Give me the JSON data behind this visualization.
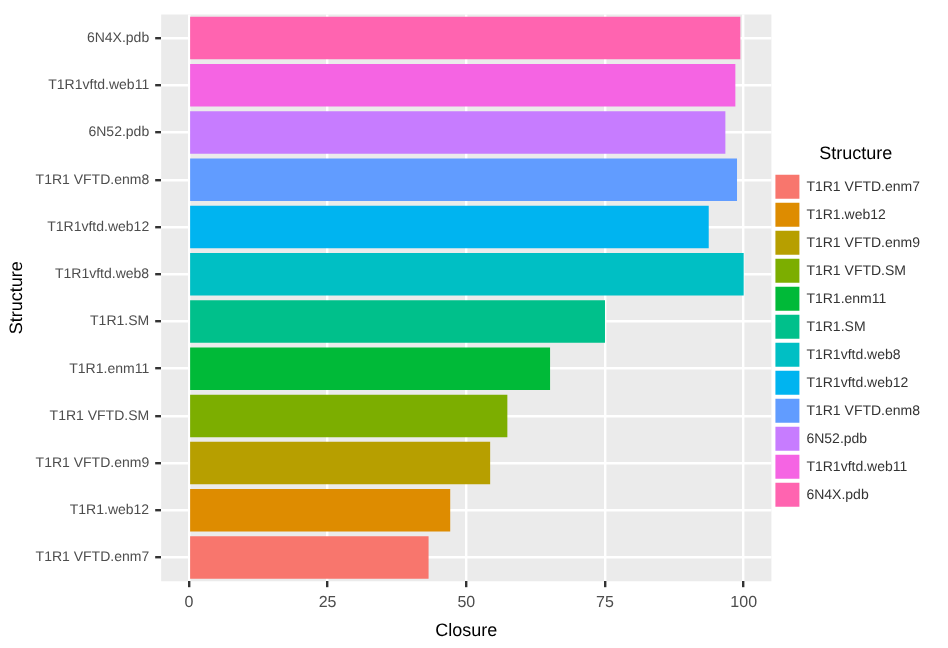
{
  "chart_data": {
    "type": "bar",
    "orientation": "horizontal",
    "xlabel": "Closure",
    "ylabel": "Structure",
    "legend_title": "Structure",
    "legend": "right",
    "grid": true,
    "categories": [
      "6N4X.pdb",
      "T1R1vftd.web11",
      "6N52.pdb",
      "T1R1 VFTD.enm8",
      "T1R1vftd.web12",
      "T1R1vftd.web8",
      "T1R1.SM",
      "T1R1.enm11",
      "T1R1 VFTD.SM",
      "T1R1 VFTD.enm9",
      "T1R1.web12",
      "T1R1 VFTD.enm7"
    ],
    "series": [
      {
        "name": "T1R1 VFTD.enm7",
        "color": "#F8766D",
        "values": [
          null,
          null,
          null,
          null,
          null,
          null,
          null,
          null,
          null,
          null,
          null,
          43.2
        ]
      },
      {
        "name": "T1R1.web12",
        "color": "#DE8C00",
        "values": [
          null,
          null,
          null,
          null,
          null,
          null,
          null,
          null,
          null,
          null,
          47.1,
          null
        ]
      },
      {
        "name": "T1R1 VFTD.enm9",
        "color": "#B79F00",
        "values": [
          null,
          null,
          null,
          null,
          null,
          null,
          null,
          null,
          null,
          54.3,
          null,
          null
        ]
      },
      {
        "name": "T1R1 VFTD.SM",
        "color": "#7CAE00",
        "values": [
          null,
          null,
          null,
          null,
          null,
          null,
          null,
          null,
          57.4,
          null,
          null,
          null
        ]
      },
      {
        "name": "T1R1.enm11",
        "color": "#00BA38",
        "values": [
          null,
          null,
          null,
          null,
          null,
          null,
          null,
          65.1,
          null,
          null,
          null,
          null
        ]
      },
      {
        "name": "T1R1.SM",
        "color": "#00C08B",
        "values": [
          null,
          null,
          null,
          null,
          null,
          null,
          75,
          null,
          null,
          null,
          null,
          null
        ]
      },
      {
        "name": "T1R1vftd.web8",
        "color": "#00BFC4",
        "values": [
          null,
          null,
          null,
          null,
          null,
          100,
          null,
          null,
          null,
          null,
          null,
          null
        ]
      },
      {
        "name": "T1R1vftd.web12",
        "color": "#00B4F0",
        "values": [
          null,
          null,
          null,
          null,
          93.7,
          null,
          null,
          null,
          null,
          null,
          null,
          null
        ]
      },
      {
        "name": "T1R1 VFTD.enm8",
        "color": "#619CFF",
        "values": [
          null,
          null,
          null,
          98.8,
          null,
          null,
          null,
          null,
          null,
          null,
          null,
          null
        ]
      },
      {
        "name": "6N52.pdb",
        "color": "#C77CFF",
        "values": [
          null,
          null,
          96.7,
          null,
          null,
          null,
          null,
          null,
          null,
          null,
          null,
          null
        ]
      },
      {
        "name": "T1R1vftd.web11",
        "color": "#F564E3",
        "values": [
          null,
          98.5,
          null,
          null,
          null,
          null,
          null,
          null,
          null,
          null,
          null,
          null
        ]
      },
      {
        "name": "6N4X.pdb",
        "color": "#FF64B0",
        "values": [
          99.4,
          null,
          null,
          null,
          null,
          null,
          null,
          null,
          null,
          null,
          null,
          null
        ]
      }
    ],
    "xlim": [
      -5,
      105
    ],
    "xticks": [
      0,
      25,
      50,
      75,
      100
    ]
  }
}
